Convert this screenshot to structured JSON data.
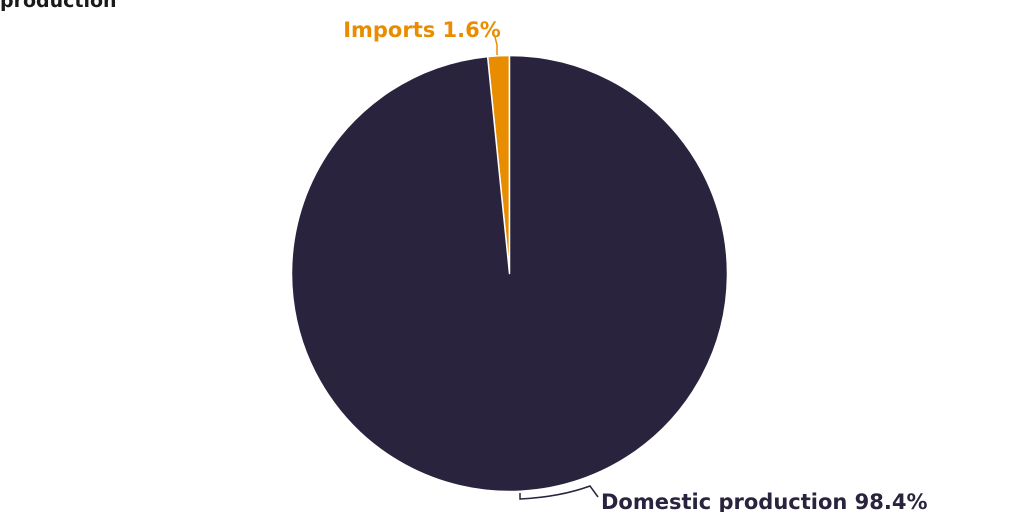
{
  "header": {
    "title_fragment": "production"
  },
  "chart_data": {
    "type": "pie",
    "categories": [
      "Imports",
      "Domestic production"
    ],
    "values": [
      1.6,
      98.4
    ],
    "unit": "%",
    "labels": [
      "Imports 1.6%",
      "Domestic production 98.4%"
    ],
    "colors": [
      "#e88d00",
      "#29233d"
    ],
    "label_colors": [
      "#e88d00",
      "#29233d"
    ],
    "legend": false
  }
}
